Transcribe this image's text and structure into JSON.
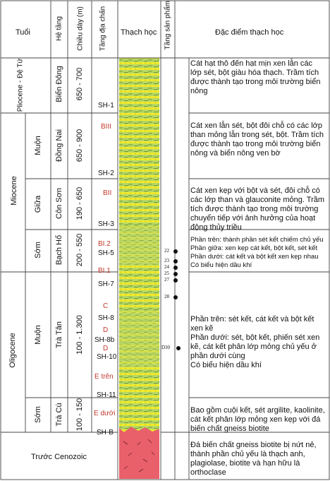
{
  "headers": {
    "age": "Tuổi",
    "system": "Hệ tầng",
    "thickness": "Chiều dày (m)",
    "seismic": "Tầng địa chấn",
    "lithology": "Thạch học",
    "product": "Tầng sản phẩm",
    "characteristics": "Đặc điểm thạch học"
  },
  "epochs": {
    "pliocene": "Pliocene - Đệ Tứ",
    "miocene": "Miocene",
    "oligocene": "Oligocene",
    "pre": "Trước Cenozoic"
  },
  "subepochs": {
    "muon1": "Muộn",
    "giua": "Giữa",
    "som1": "Sớm",
    "muon2": "Muộn",
    "som2": "Sớm"
  },
  "formations": {
    "bien_dong": "Biển Đông",
    "dong_nai": "Đồng Nai",
    "con_son": "Côn Sơn",
    "bach_ho": "Bạch Hổ",
    "tra_tan": "Trà Tân",
    "tra_cu": "Trà Cú"
  },
  "thickness": {
    "t1": "650 - 700",
    "t2": "650 - 900",
    "t3": "190 - 650",
    "t4": "200 - 550",
    "t5": "100 - 1.300",
    "t6": "100 - 150"
  },
  "seismic": {
    "sh1": "SH-1",
    "biii": "BIII",
    "sh2": "SH-2",
    "bii": "BII",
    "sh3": "SH-3",
    "bi2": "BI.2",
    "sh5": "SH-5",
    "bi1": "BI.1",
    "sh7": "SH-7",
    "c": "C",
    "sh8": "SH-8",
    "d1": "D",
    "sh8b": "SH-8b",
    "d2": "D",
    "sh10": "SH-10",
    "etren": "E trên",
    "sh11": "SH-11",
    "eduoi": "E dưới",
    "shb": "SH-B"
  },
  "products": [
    "22",
    "23",
    "24",
    "25",
    "27",
    "28",
    "D30"
  ],
  "descriptions": {
    "d1": "Cát hạt thô đến hạt mịn xen lẫn các lớp sét, bột giàu hóa thạch. Trầm tích được thành tạo trong môi trường biển nông",
    "d2": "Cát xen lẫn sét, bột đôi chỗ có các lớp than mỏng lẫn trong sét, bột. Trầm tích được thành tạo trong môi trường biển nông và biển nông ven bờ",
    "d3": "Cát xen kẹp với bột và sét, đôi chỗ có các lớp than và glauconite mỏng. Trầm tích được thành tạo trong môi trường chuyển tiếp với ảnh hưởng của hoạt động thủy triều",
    "d4": [
      "Phần trên: thành phần sét kết chiếm chủ yếu",
      "Phần giữa: xen kẹp cát kết, bột kết, sét kết",
      "Phần dưới: cát kết và bột kết xen kẹp nhau",
      "Có biểu hiện dầu khí"
    ],
    "d5": [
      "Phần trên: sét kết, cát kết và bột kết xen kẽ",
      "Phần dưới: sét, bột kết, phiến sét xen kẽ, cát kết phân lớp mỏng chủ yếu ở phần dưới cùng",
      "Có biểu hiện dầu khí"
    ],
    "d6": "Bao gồm cuội kết, sét argilite, kaolinite, cát kết phân lớp mỏng xen kẹp với đá biến chất gneiss biotite",
    "d7": "Đá biến chất gneiss biotite bị nứt nẻ, thành phần chủ yếu là thạch anh, plagiolase, biotite và hạn hữu là orthoclase"
  },
  "colors": {
    "grid": "#444444",
    "sand": "#f2ec2c",
    "shale": "#a9d35b",
    "basement": "#e9606a",
    "seismic_red": "#c0392b"
  }
}
